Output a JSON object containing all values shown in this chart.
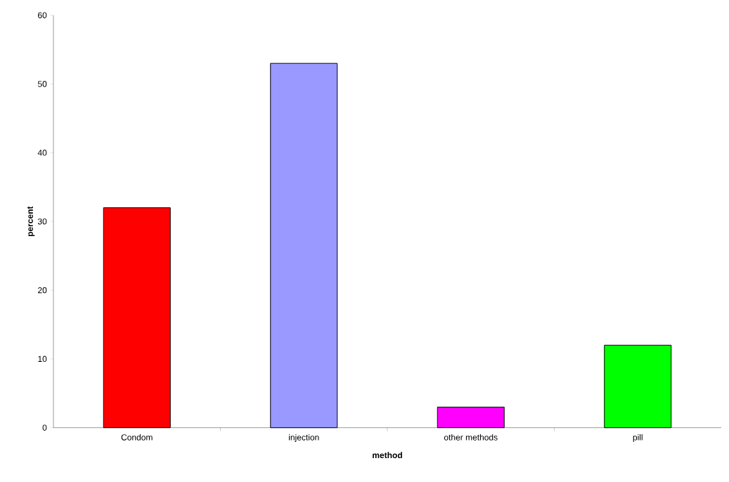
{
  "chart_data": {
    "type": "bar",
    "xlabel": "method",
    "ylabel": "percent",
    "categories": [
      "Condom",
      "injection",
      "other methods",
      "pill"
    ],
    "values": [
      32,
      53,
      3,
      12
    ],
    "colors": [
      "#ff0000",
      "#9999ff",
      "#ff00ff",
      "#00ff00"
    ],
    "ylim": [
      0,
      60
    ],
    "yticks": [
      0,
      10,
      20,
      30,
      40,
      50,
      60
    ]
  }
}
